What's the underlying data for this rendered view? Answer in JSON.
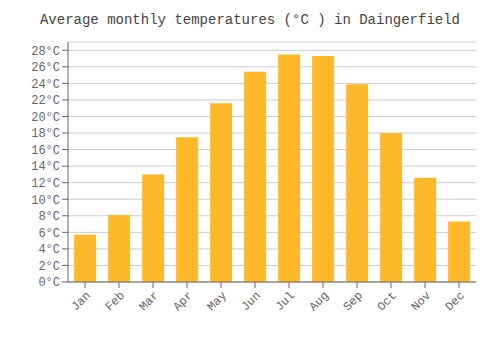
{
  "chart_data": {
    "type": "bar",
    "title": "Average monthly temperatures (°C ) in Daingerfield",
    "categories": [
      "Jan",
      "Feb",
      "Mar",
      "Apr",
      "May",
      "Jun",
      "Jul",
      "Aug",
      "Sep",
      "Oct",
      "Nov",
      "Dec"
    ],
    "values": [
      5.7,
      8.1,
      13.0,
      17.5,
      21.6,
      25.4,
      27.5,
      27.3,
      23.9,
      18.0,
      12.6,
      7.3
    ],
    "color": "#FDB92A",
    "ylim": [
      0,
      29
    ],
    "yticks": [
      {
        "value": 0,
        "label": "0°C"
      },
      {
        "value": 2,
        "label": "2°C"
      },
      {
        "value": 4,
        "label": "4°C"
      },
      {
        "value": 6,
        "label": "6°C"
      },
      {
        "value": 8,
        "label": "8°C"
      },
      {
        "value": 10,
        "label": "10°C"
      },
      {
        "value": 12,
        "label": "12°C"
      },
      {
        "value": 14,
        "label": "14°C"
      },
      {
        "value": 16,
        "label": "16°C"
      },
      {
        "value": 18,
        "label": "18°C"
      },
      {
        "value": 20,
        "label": "20°C"
      },
      {
        "value": 22,
        "label": "22°C"
      },
      {
        "value": 24,
        "label": "24°C"
      },
      {
        "value": 26,
        "label": "26°C"
      },
      {
        "value": 28,
        "label": "28°C"
      }
    ],
    "grid": true
  }
}
